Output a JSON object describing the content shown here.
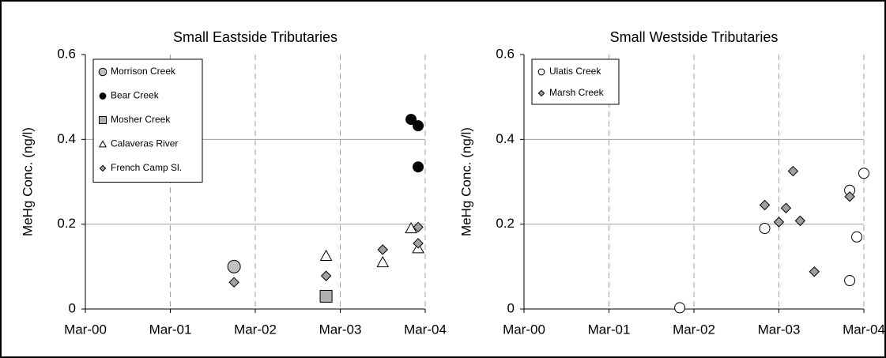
{
  "chart_data": [
    {
      "type": "scatter",
      "title": "Small Eastside Tributaries",
      "y_label": "MeHg Conc. (ng/l)",
      "xlim": [
        "2000-03",
        "2004-03"
      ],
      "xticks": [
        {
          "value": "2000-03",
          "label": "Mar-00"
        },
        {
          "value": "2001-03",
          "label": "Mar-01"
        },
        {
          "value": "2002-03",
          "label": "Mar-02"
        },
        {
          "value": "2003-03",
          "label": "Mar-03"
        },
        {
          "value": "2004-03",
          "label": "Mar-04"
        }
      ],
      "ylim": [
        0,
        0.6
      ],
      "yticks": [
        0,
        0.2,
        0.4,
        0.6
      ],
      "grid": true,
      "legend": "upper left",
      "series": [
        {
          "name": "Morrison Creek",
          "marker": "circle-large",
          "color": "#c0c0c0",
          "x": [
            "2001-12"
          ],
          "values": [
            0.1
          ]
        },
        {
          "name": "Bear Creek",
          "marker": "circle",
          "color": "#000000",
          "x": [
            "2004-01",
            "2004-02",
            "2004-02"
          ],
          "values": [
            0.447,
            0.432,
            0.335
          ]
        },
        {
          "name": "Mosher Creek",
          "marker": "square",
          "color": "#b0b0b0",
          "x": [
            "2003-01"
          ],
          "values": [
            0.03
          ]
        },
        {
          "name": "Calaveras River",
          "marker": "triangle",
          "color": "#ffffff",
          "x": [
            "2003-01",
            "2003-09",
            "2004-01",
            "2004-02"
          ],
          "values": [
            0.125,
            0.11,
            0.19,
            0.143
          ]
        },
        {
          "name": "French Camp Sl.",
          "marker": "diamond",
          "color": "#a0a0a0",
          "x": [
            "2001-12",
            "2003-01",
            "2003-09",
            "2004-02",
            "2004-02"
          ],
          "values": [
            0.063,
            0.078,
            0.14,
            0.155,
            0.193
          ]
        }
      ]
    },
    {
      "type": "scatter",
      "title": "Small Westside Tributaries",
      "y_label": "MeHg Conc. (ng/l)",
      "xlim": [
        "2000-03",
        "2004-03"
      ],
      "xticks": [
        {
          "value": "2000-03",
          "label": "Mar-00"
        },
        {
          "value": "2001-03",
          "label": "Mar-01"
        },
        {
          "value": "2002-03",
          "label": "Mar-02"
        },
        {
          "value": "2003-03",
          "label": "Mar-03"
        },
        {
          "value": "2004-03",
          "label": "Mar-04"
        }
      ],
      "ylim": [
        0,
        0.6
      ],
      "yticks": [
        0,
        0.2,
        0.4,
        0.6
      ],
      "grid": true,
      "legend": "upper left",
      "series": [
        {
          "name": "Ulatis Creek",
          "marker": "circle",
          "color": "#ffffff",
          "x": [
            "2002-01",
            "2003-01",
            "2004-01",
            "2004-03",
            "2004-02",
            "2004-01"
          ],
          "values": [
            0.003,
            0.19,
            0.28,
            0.32,
            0.17,
            0.067
          ]
        },
        {
          "name": "Marsh Creek",
          "marker": "diamond",
          "color": "#a0a0a0",
          "x": [
            "2003-01",
            "2003-03",
            "2003-04",
            "2003-05",
            "2003-06",
            "2003-08",
            "2004-01"
          ],
          "values": [
            0.245,
            0.205,
            0.238,
            0.325,
            0.208,
            0.088,
            0.265
          ]
        }
      ]
    }
  ]
}
